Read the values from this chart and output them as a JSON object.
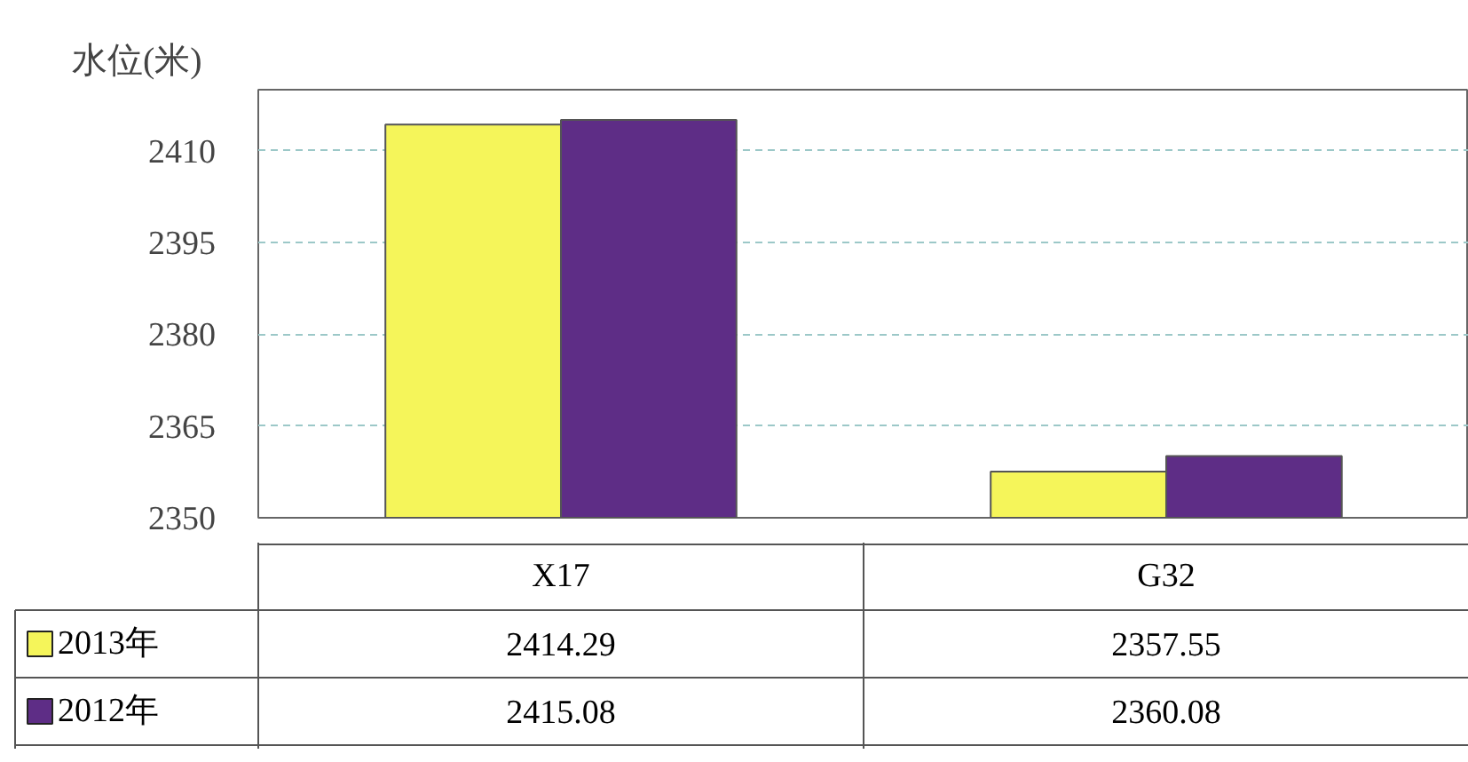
{
  "chart_data": {
    "type": "bar",
    "ylabel": "水位(米)",
    "categories": [
      "X17",
      "G32"
    ],
    "series": [
      {
        "name": "2013年",
        "color": "#f5f55a",
        "values": [
          2414.29,
          2357.55
        ]
      },
      {
        "name": "2012年",
        "color": "#5e2d86",
        "values": [
          2415.08,
          2360.08
        ]
      }
    ],
    "ylim": [
      2350,
      2420
    ],
    "yticks": [
      2350,
      2365,
      2380,
      2395,
      2410
    ],
    "grid": "y",
    "legend": "bottom",
    "data_labels": true
  }
}
